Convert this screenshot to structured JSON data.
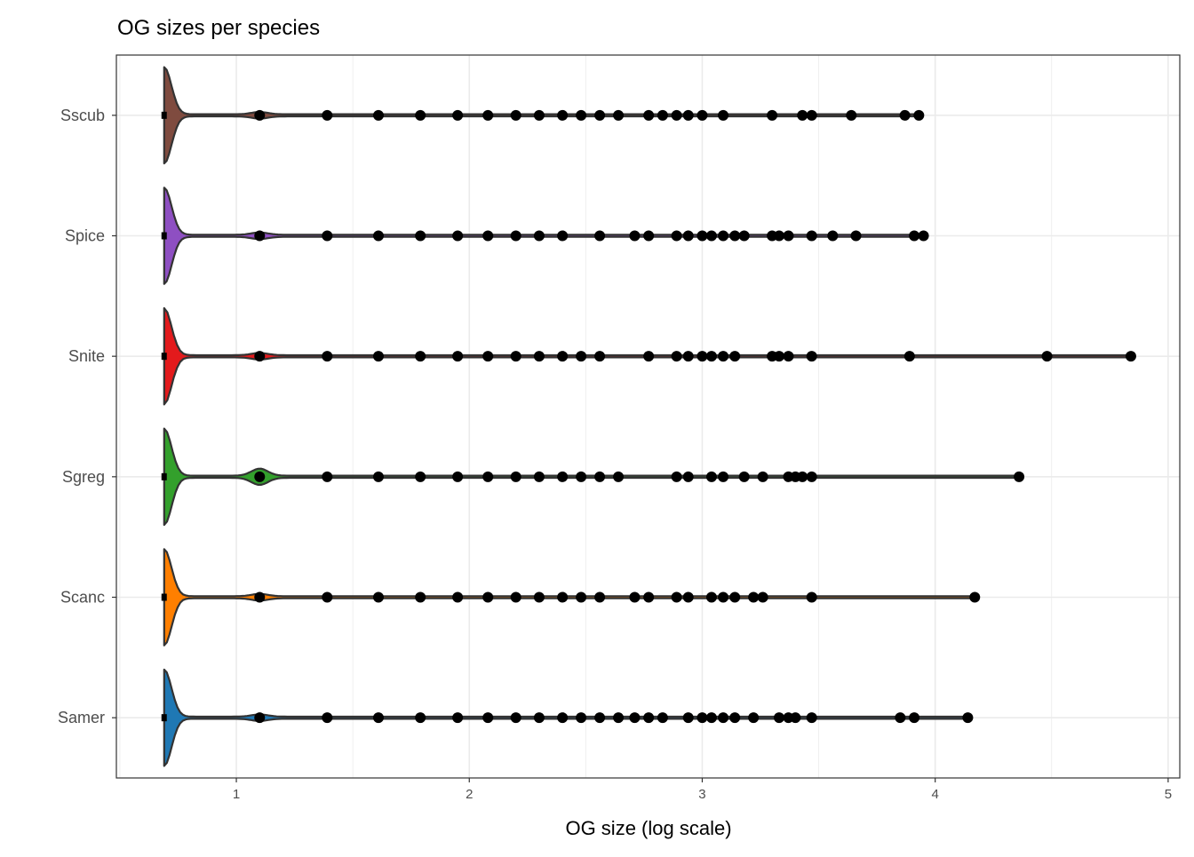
{
  "chart_data": {
    "type": "violin",
    "title": "OG sizes per species",
    "xlabel": "OG size (log scale)",
    "ylabel": "",
    "xlim": [
      0.485,
      5.05
    ],
    "x_ticks": [
      "1",
      "2",
      "3",
      "4",
      "5"
    ],
    "grid": true,
    "legend": "none",
    "categories": [
      "Sscub",
      "Spice",
      "Snite",
      "Sgreg",
      "Scanc",
      "Samer"
    ],
    "series": [
      {
        "name": "Sscub",
        "color": "#7F4B3F",
        "points": [
          0.69,
          1.1,
          1.39,
          1.61,
          1.79,
          1.95,
          2.08,
          2.2,
          2.3,
          2.4,
          2.48,
          2.56,
          2.64,
          2.77,
          2.83,
          2.89,
          2.94,
          3.0,
          3.09,
          3.3,
          3.43,
          3.47,
          3.64,
          3.87,
          3.93
        ]
      },
      {
        "name": "Spice",
        "color": "#8E4FC2",
        "points": [
          0.69,
          1.1,
          1.39,
          1.61,
          1.79,
          1.95,
          2.08,
          2.2,
          2.3,
          2.4,
          2.56,
          2.71,
          2.77,
          2.89,
          2.94,
          3.0,
          3.04,
          3.09,
          3.14,
          3.18,
          3.3,
          3.33,
          3.37,
          3.47,
          3.56,
          3.66,
          3.91,
          3.95
        ]
      },
      {
        "name": "Snite",
        "color": "#E31A1C",
        "points": [
          0.69,
          1.1,
          1.39,
          1.61,
          1.79,
          1.95,
          2.08,
          2.2,
          2.3,
          2.4,
          2.48,
          2.56,
          2.77,
          2.89,
          2.94,
          3.0,
          3.04,
          3.09,
          3.14,
          3.3,
          3.33,
          3.37,
          3.47,
          3.89,
          4.48,
          4.84
        ]
      },
      {
        "name": "Sgreg",
        "color": "#33A02C",
        "points": [
          0.69,
          1.1,
          1.39,
          1.61,
          1.79,
          1.95,
          2.08,
          2.2,
          2.3,
          2.4,
          2.48,
          2.56,
          2.64,
          2.89,
          2.94,
          3.04,
          3.09,
          3.18,
          3.26,
          3.37,
          3.4,
          3.43,
          3.47,
          4.36
        ]
      },
      {
        "name": "Scanc",
        "color": "#FF7F00",
        "points": [
          0.69,
          1.1,
          1.39,
          1.61,
          1.79,
          1.95,
          2.08,
          2.2,
          2.3,
          2.4,
          2.48,
          2.56,
          2.71,
          2.77,
          2.89,
          2.94,
          3.04,
          3.09,
          3.14,
          3.22,
          3.26,
          3.47,
          4.17
        ]
      },
      {
        "name": "Samer",
        "color": "#1F78B4",
        "points": [
          0.69,
          1.1,
          1.39,
          1.61,
          1.79,
          1.95,
          2.08,
          2.2,
          2.3,
          2.4,
          2.48,
          2.56,
          2.64,
          2.71,
          2.77,
          2.83,
          2.94,
          3.0,
          3.04,
          3.09,
          3.14,
          3.22,
          3.33,
          3.37,
          3.4,
          3.47,
          3.85,
          3.91,
          4.14
        ]
      }
    ]
  }
}
